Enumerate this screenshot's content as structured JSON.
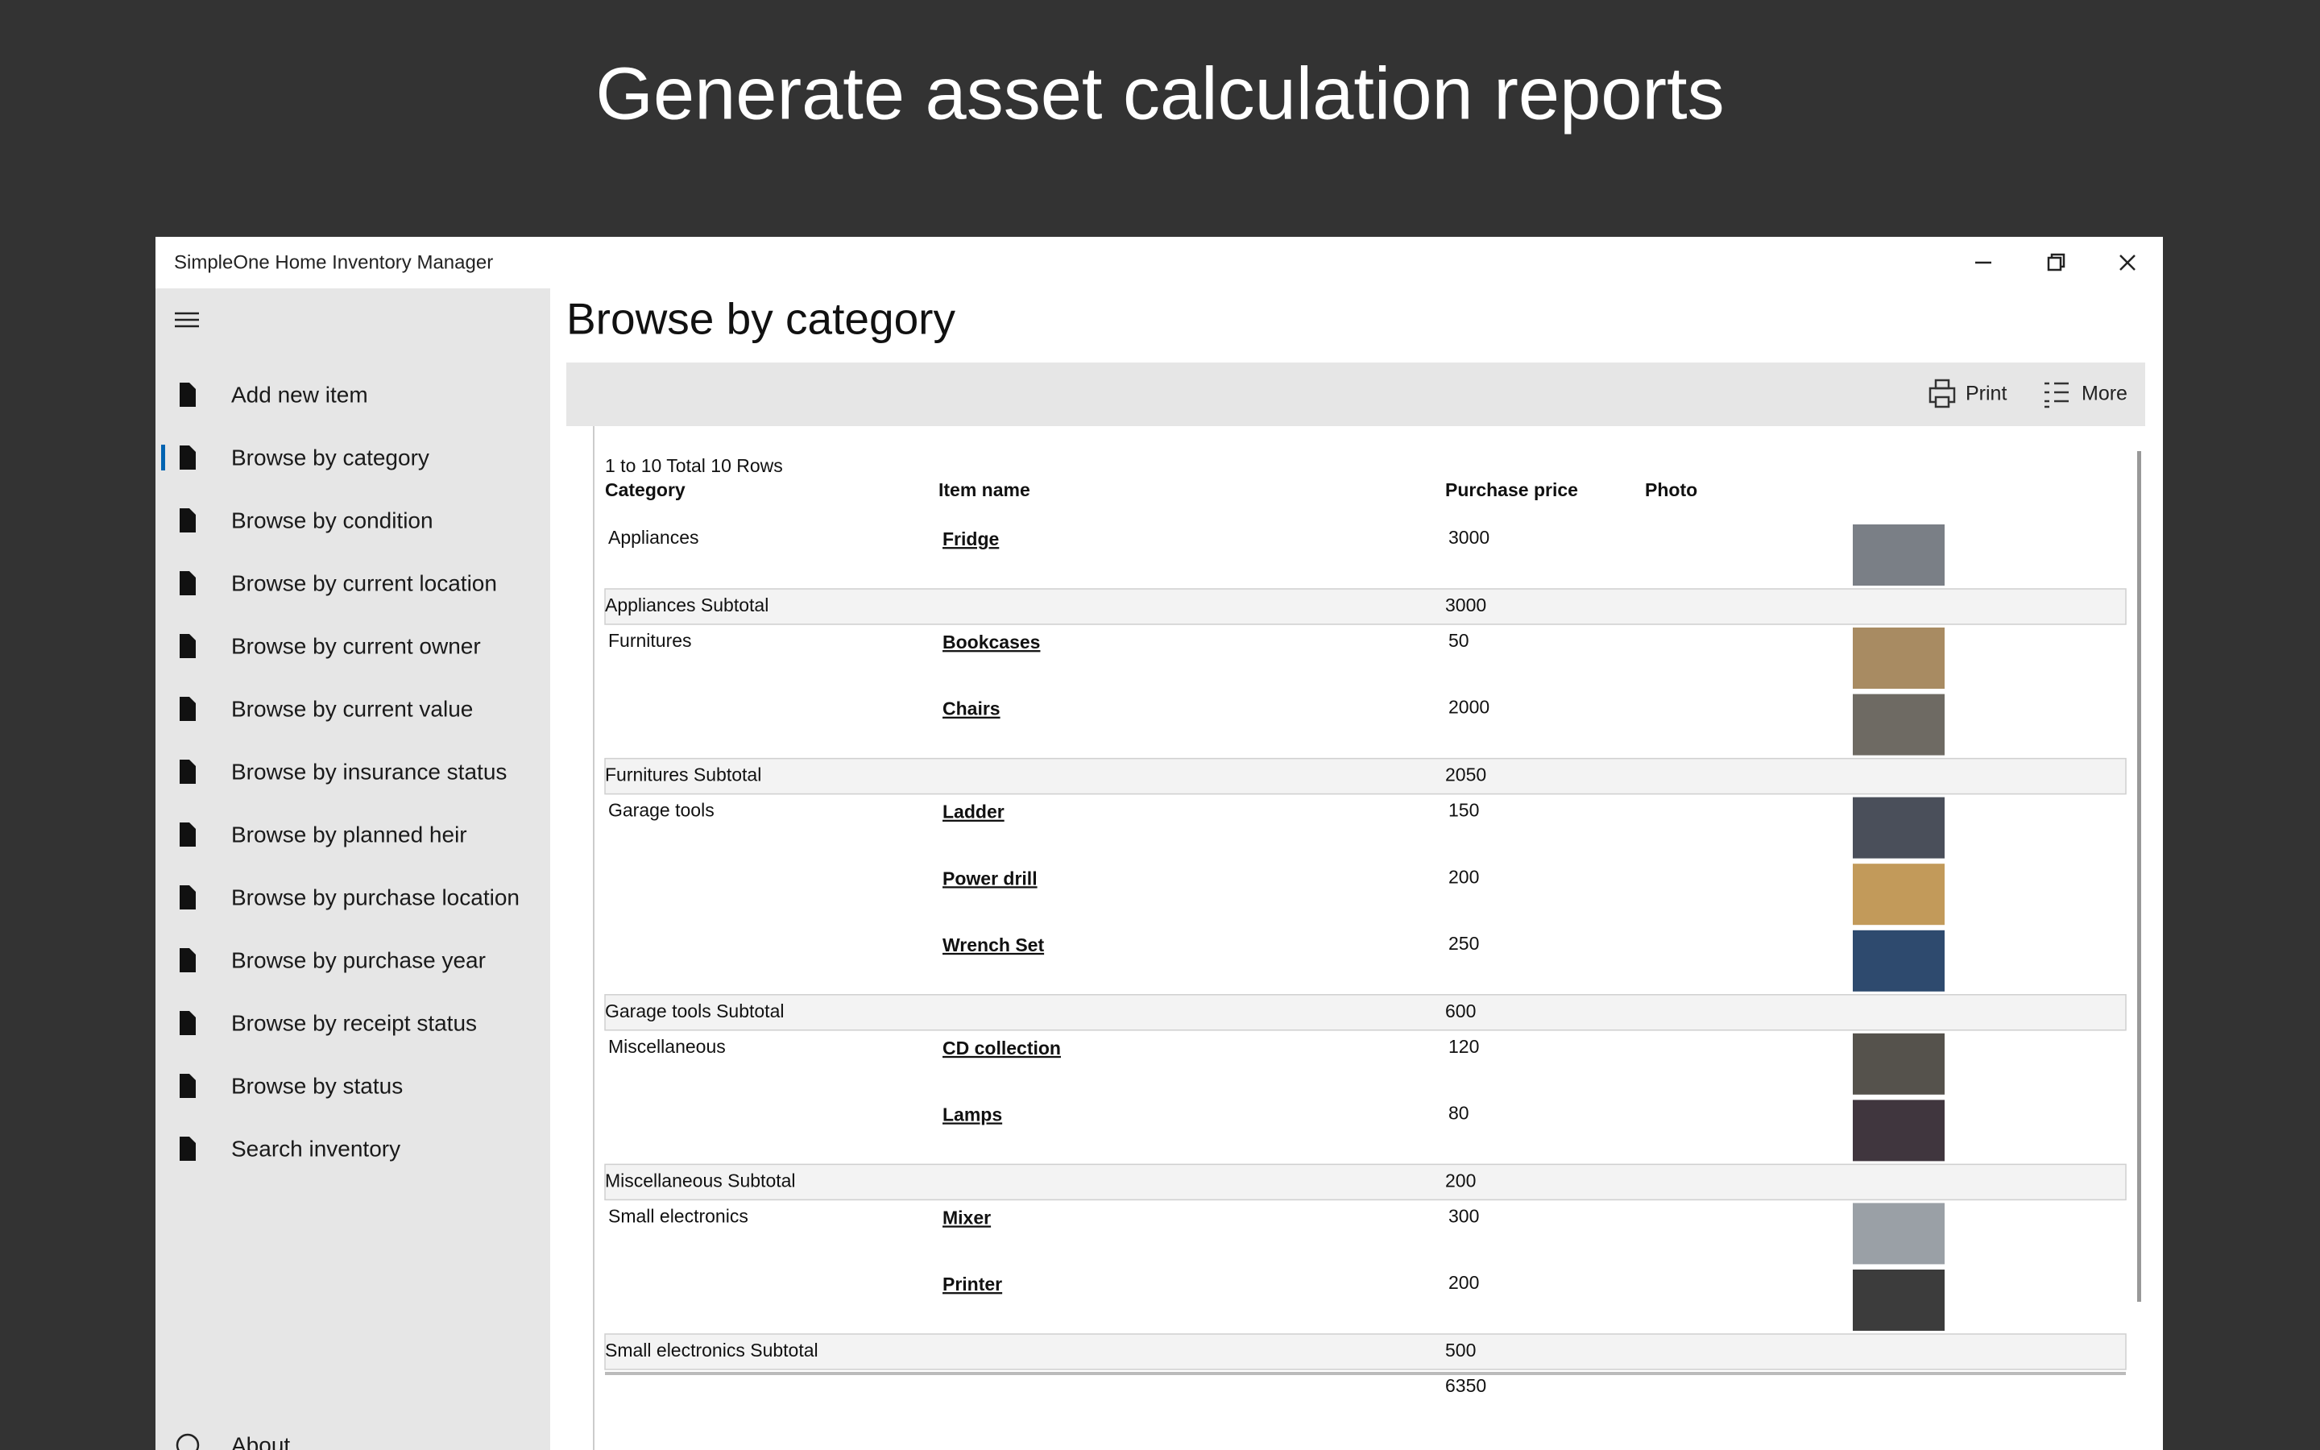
{
  "headline": "Generate asset calculation reports",
  "window": {
    "title": "SimpleOne Home Inventory Manager"
  },
  "nav": {
    "items": [
      "Add new item",
      "Browse by category",
      "Browse by condition",
      "Browse by current location",
      "Browse by current owner",
      "Browse by current value",
      "Browse by insurance status",
      "Browse by planned heir",
      "Browse by purchase location",
      "Browse by purchase year",
      "Browse by receipt status",
      "Browse by status",
      "Search inventory"
    ],
    "active": 1,
    "about": "About"
  },
  "page": {
    "title": "Browse by category"
  },
  "toolbar": {
    "print": "Print",
    "more": "More"
  },
  "report": {
    "summary": "1 to 10 Total 10 Rows",
    "columns": [
      "Category",
      "Item name",
      "Purchase price",
      "Photo"
    ],
    "groups": [
      {
        "category": "Appliances",
        "items": [
          {
            "name": "Fridge",
            "price": 3000
          }
        ],
        "subtotal_label": "Appliances Subtotal",
        "subtotal": 3000
      },
      {
        "category": "Furnitures",
        "items": [
          {
            "name": "Bookcases",
            "price": 50
          },
          {
            "name": "Chairs",
            "price": 2000
          }
        ],
        "subtotal_label": "Furnitures Subtotal",
        "subtotal": 2050
      },
      {
        "category": "Garage tools",
        "items": [
          {
            "name": "Ladder",
            "price": 150
          },
          {
            "name": "Power drill",
            "price": 200
          },
          {
            "name": "Wrench Set",
            "price": 250
          }
        ],
        "subtotal_label": "Garage tools Subtotal",
        "subtotal": 600
      },
      {
        "category": "Miscellaneous",
        "items": [
          {
            "name": "CD collection",
            "price": 120
          },
          {
            "name": "Lamps",
            "price": 80
          }
        ],
        "subtotal_label": "Miscellaneous Subtotal",
        "subtotal": 200
      },
      {
        "category": "Small electronics",
        "items": [
          {
            "name": "Mixer",
            "price": 300
          },
          {
            "name": "Printer",
            "price": 200
          }
        ],
        "subtotal_label": "Small electronics Subtotal",
        "subtotal": 500
      }
    ],
    "total": 6350
  }
}
